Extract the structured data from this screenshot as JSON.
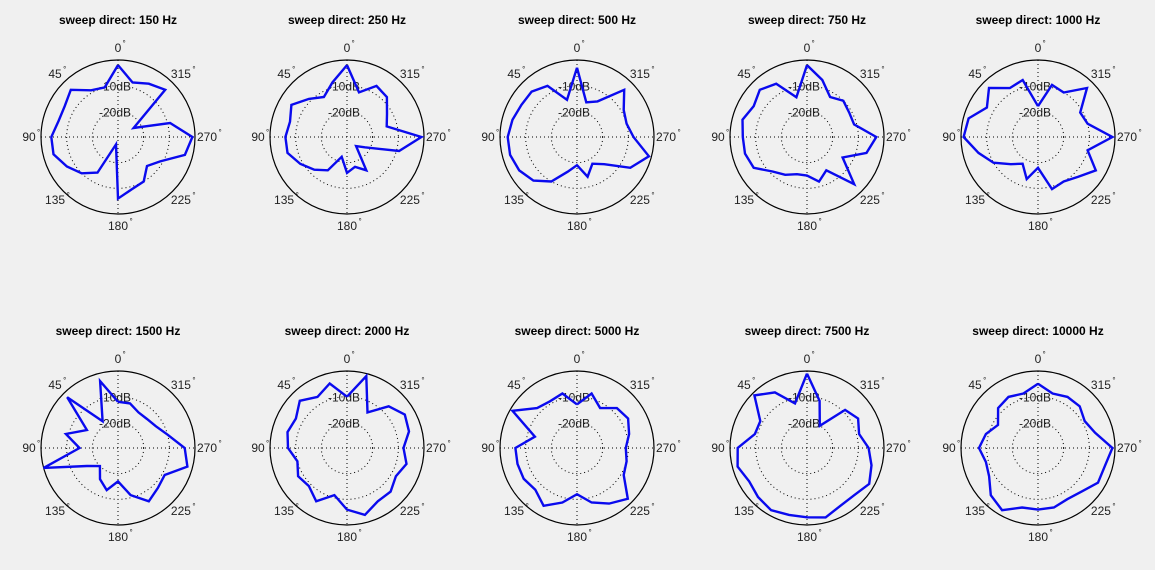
{
  "figure": {
    "background": "#f0f0f0",
    "line_color": "#0a0aee",
    "radial_labels": [
      "-10dB",
      "-20dB"
    ]
  },
  "chart_data": [
    {
      "type": "polar",
      "title": "sweep direct: 150 Hz",
      "rlim": [
        -30,
        0
      ],
      "angle_ticks": [
        "0",
        "45",
        "90",
        "135",
        "180",
        "225",
        "270",
        "315"
      ],
      "r_ticks": [
        -10,
        -20
      ],
      "angle_unit": "deg",
      "angle_direction": "counterclockwise",
      "zero_location": "top",
      "series": [
        {
          "theta": [
            0,
            15,
            30,
            45,
            60,
            75,
            90,
            105,
            120,
            135,
            150,
            165,
            180,
            195,
            210,
            225,
            240,
            255,
            270,
            285,
            300,
            315,
            330,
            345
          ],
          "r": [
            -2,
            -10,
            -9,
            -4,
            -6,
            -6,
            -4,
            -4,
            -7,
            -10,
            -14,
            -27,
            -6,
            -9,
            -10,
            -14,
            -11,
            -3,
            -1,
            -9,
            -23,
            -4,
            -6,
            -8
          ]
        }
      ]
    },
    {
      "type": "polar",
      "title": "sweep direct: 250 Hz",
      "rlim": [
        -30,
        0
      ],
      "angle_ticks": [
        "0",
        "45",
        "90",
        "135",
        "180",
        "225",
        "270",
        "315"
      ],
      "r_ticks": [
        -10,
        -20
      ],
      "angle_unit": "deg",
      "angle_direction": "counterclockwise",
      "zero_location": "top",
      "series": [
        {
          "theta": [
            0,
            15,
            30,
            45,
            60,
            75,
            90,
            105,
            120,
            135,
            150,
            165,
            180,
            195,
            210,
            225,
            240,
            255,
            270,
            285,
            300,
            315,
            330,
            345
          ],
          "r": [
            -2,
            -8,
            -12,
            -9,
            -5,
            -7,
            -6,
            -6,
            -9,
            -12,
            -15,
            -22,
            -16,
            -18,
            -15,
            -25,
            -22,
            -9,
            -1,
            -14,
            -12,
            -8,
            -7,
            -12
          ]
        }
      ]
    },
    {
      "type": "polar",
      "title": "sweep direct: 500 Hz",
      "rlim": [
        -30,
        0
      ],
      "angle_ticks": [
        "0",
        "45",
        "90",
        "135",
        "180",
        "225",
        "270",
        "315"
      ],
      "r_ticks": [
        -10,
        -20
      ],
      "angle_unit": "deg",
      "angle_direction": "counterclockwise",
      "zero_location": "top",
      "series": [
        {
          "theta": [
            0,
            15,
            30,
            45,
            60,
            75,
            90,
            105,
            120,
            135,
            150,
            165,
            180,
            195,
            210,
            225,
            240,
            255,
            270,
            285,
            300,
            315,
            330,
            345
          ],
          "r": [
            -3,
            -15,
            -7,
            -5,
            -5,
            -4,
            -3,
            -3,
            -4,
            -6,
            -10,
            -16,
            -19,
            -14,
            -18,
            -15,
            -6,
            -1,
            -8,
            -10,
            -9,
            -4,
            -14,
            -16
          ]
        }
      ]
    },
    {
      "type": "polar",
      "title": "sweep direct: 750 Hz",
      "rlim": [
        -30,
        0
      ],
      "angle_ticks": [
        "0",
        "45",
        "90",
        "135",
        "180",
        "225",
        "270",
        "315"
      ],
      "r_ticks": [
        -10,
        -20
      ],
      "angle_unit": "deg",
      "angle_direction": "counterclockwise",
      "zero_location": "top",
      "series": [
        {
          "theta": [
            0,
            15,
            30,
            45,
            60,
            75,
            90,
            105,
            120,
            135,
            150,
            165,
            180,
            195,
            210,
            225,
            240,
            255,
            270,
            285,
            300,
            315,
            330,
            345
          ],
          "r": [
            -2,
            -14,
            -6,
            -4,
            -6,
            -4,
            -5,
            -5,
            -6,
            -11,
            -13,
            -15,
            -15,
            -12,
            -15,
            -4,
            -14,
            -6,
            -3,
            -11,
            -11,
            -10,
            -12,
            -7
          ]
        }
      ]
    },
    {
      "type": "polar",
      "title": "sweep direct: 1000 Hz",
      "rlim": [
        -30,
        0
      ],
      "angle_ticks": [
        "0",
        "45",
        "90",
        "135",
        "180",
        "225",
        "270",
        "315"
      ],
      "r_ticks": [
        -10,
        -20
      ],
      "angle_unit": "deg",
      "angle_direction": "counterclockwise",
      "zero_location": "top",
      "series": [
        {
          "theta": [
            0,
            15,
            30,
            45,
            60,
            75,
            90,
            105,
            120,
            135,
            150,
            165,
            180,
            195,
            210,
            225,
            240,
            255,
            270,
            285,
            300,
            315,
            330,
            345
          ],
          "r": [
            -18,
            -7,
            -8,
            -3,
            -7,
            -2,
            -1,
            -6,
            -10,
            -15,
            -18,
            -13,
            -18,
            -9,
            -10,
            -8,
            -4,
            -10,
            -1,
            -10,
            -11,
            -3,
            -10,
            -9
          ]
        }
      ]
    },
    {
      "type": "polar",
      "title": "sweep direct: 1500 Hz",
      "rlim": [
        -30,
        0
      ],
      "angle_ticks": [
        "0",
        "45",
        "90",
        "135",
        "180",
        "225",
        "270",
        "315"
      ],
      "r_ticks": [
        -10,
        -20
      ],
      "angle_unit": "deg",
      "angle_direction": "counterclockwise",
      "zero_location": "top",
      "series": [
        {
          "theta": [
            0,
            15,
            30,
            45,
            60,
            75,
            90,
            105,
            120,
            135,
            150,
            165,
            180,
            195,
            210,
            225,
            240,
            255,
            270,
            285,
            300,
            315,
            330,
            345
          ],
          "r": [
            -12,
            -3,
            -18,
            -2,
            -16,
            -9,
            -15,
            0,
            -16,
            -20,
            -16,
            -13,
            -17,
            -11,
            -6,
            -8,
            -9,
            -2,
            -4,
            -10,
            -13,
            -14,
            -14,
            -12
          ]
        }
      ]
    },
    {
      "type": "polar",
      "title": "sweep direct: 2000 Hz",
      "rlim": [
        -30,
        0
      ],
      "angle_ticks": [
        "0",
        "45",
        "90",
        "135",
        "180",
        "225",
        "270",
        "315"
      ],
      "r_ticks": [
        -10,
        -20
      ],
      "angle_unit": "deg",
      "angle_direction": "counterclockwise",
      "zero_location": "top",
      "series": [
        {
          "theta": [
            0,
            15,
            30,
            45,
            60,
            75,
            90,
            105,
            120,
            135,
            150,
            165,
            180,
            195,
            210,
            225,
            240,
            255,
            270,
            285,
            300,
            315,
            330,
            345
          ],
          "r": [
            -10,
            -4,
            -7,
            -4,
            -7,
            -6,
            -7,
            -10,
            -8,
            -9,
            -6,
            -11,
            -6,
            -3,
            -6,
            -6,
            -8,
            -6,
            -8,
            -5,
            -4,
            -7,
            -14,
            -1
          ]
        }
      ]
    },
    {
      "type": "polar",
      "title": "sweep direct: 5000 Hz",
      "rlim": [
        -30,
        0
      ],
      "angle_ticks": [
        "0",
        "45",
        "90",
        "135",
        "180",
        "225",
        "270",
        "315"
      ],
      "r_ticks": [
        -10,
        -20
      ],
      "angle_unit": "deg",
      "angle_direction": "counterclockwise",
      "zero_location": "top",
      "series": [
        {
          "theta": [
            0,
            15,
            30,
            45,
            60,
            75,
            90,
            105,
            120,
            135,
            150,
            165,
            180,
            195,
            210,
            225,
            240,
            255,
            270,
            285,
            300,
            315,
            330,
            345
          ],
          "r": [
            -13,
            -8,
            -9,
            -8,
            -1,
            -13,
            -6,
            -6,
            -6,
            -7,
            -4,
            -8,
            -12,
            -8,
            -5,
            -2,
            -9,
            -10,
            -11,
            -9,
            -7,
            -8,
            -12,
            -8
          ]
        }
      ]
    },
    {
      "type": "polar",
      "title": "sweep direct: 7500 Hz",
      "rlim": [
        -30,
        0
      ],
      "angle_ticks": [
        "0",
        "45",
        "90",
        "135",
        "180",
        "225",
        "270",
        "315"
      ],
      "r_ticks": [
        -10,
        -20
      ],
      "angle_unit": "deg",
      "angle_direction": "counterclockwise",
      "zero_location": "top",
      "series": [
        {
          "theta": [
            0,
            15,
            30,
            45,
            60,
            75,
            90,
            105,
            120,
            135,
            150,
            165,
            180,
            195,
            210,
            225,
            240,
            255,
            270,
            285,
            300,
            315,
            330,
            345
          ],
          "r": [
            -1,
            -12,
            -5,
            -1,
            -9,
            -9,
            -3,
            -2,
            -4,
            -3,
            -2,
            -3,
            -3,
            -2,
            -4,
            -4,
            -2,
            -4,
            -6,
            -9,
            -7,
            -9,
            -20,
            -11
          ]
        }
      ]
    },
    {
      "type": "polar",
      "title": "sweep direct: 10000 Hz",
      "rlim": [
        -30,
        0
      ],
      "angle_ticks": [
        "0",
        "45",
        "90",
        "135",
        "180",
        "225",
        "270",
        "315"
      ],
      "r_ticks": [
        -10,
        -20
      ],
      "angle_unit": "deg",
      "angle_direction": "counterclockwise",
      "zero_location": "top",
      "series": [
        {
          "theta": [
            0,
            15,
            30,
            45,
            60,
            75,
            90,
            105,
            120,
            135,
            150,
            165,
            180,
            195,
            210,
            225,
            240,
            255,
            270,
            285,
            300,
            315,
            330,
            345
          ],
          "r": [
            -5,
            -8,
            -7,
            -8,
            -12,
            -9,
            -7,
            -9,
            -8,
            -4,
            -2,
            -6,
            -6,
            -6,
            -7,
            -6,
            -3,
            -3,
            -1,
            -7,
            -9,
            -7,
            -7,
            -8
          ]
        }
      ]
    }
  ]
}
